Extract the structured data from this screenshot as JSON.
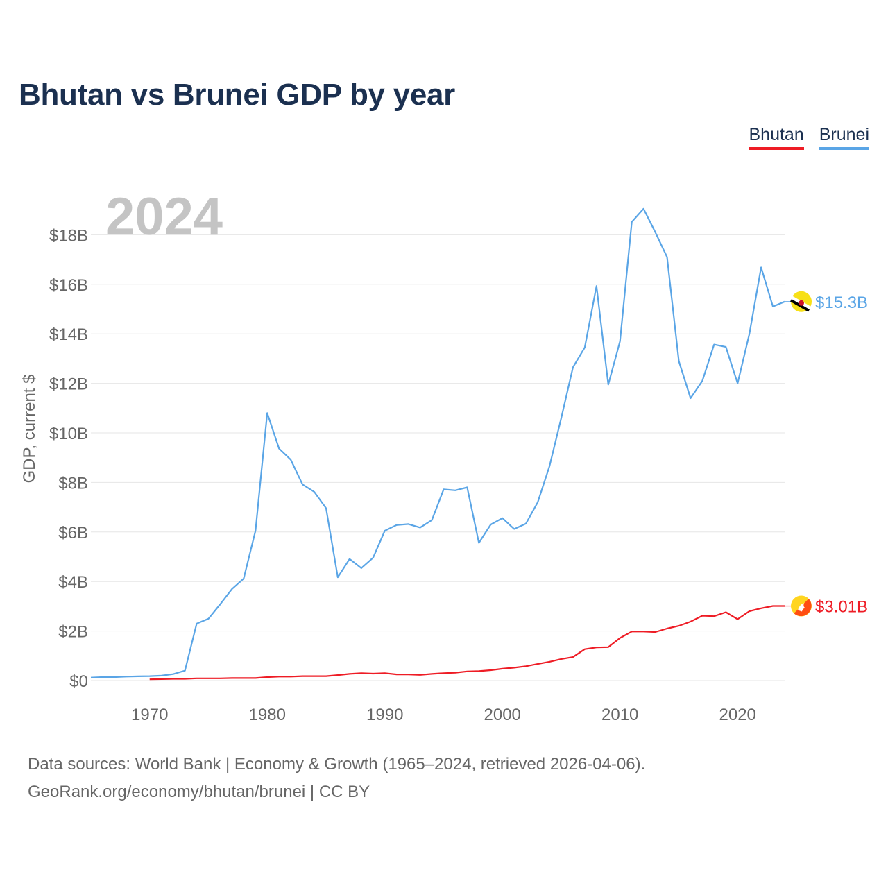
{
  "chart_data": {
    "type": "line",
    "title": "Bhutan vs Brunei GDP by year",
    "year_label": "2024",
    "ylabel": "GDP, current $",
    "xlabel": "",
    "xlim": [
      1965,
      2024
    ],
    "ylim": [
      0,
      19.3
    ],
    "x_ticks": [
      1970,
      1980,
      1990,
      2000,
      2010,
      2020
    ],
    "y_ticks": [
      {
        "value": 0,
        "label": "$0"
      },
      {
        "value": 2,
        "label": "$2B"
      },
      {
        "value": 4,
        "label": "$4B"
      },
      {
        "value": 6,
        "label": "$6B"
      },
      {
        "value": 8,
        "label": "$8B"
      },
      {
        "value": 10,
        "label": "$10B"
      },
      {
        "value": 12,
        "label": "$12B"
      },
      {
        "value": 14,
        "label": "$14B"
      },
      {
        "value": 16,
        "label": "$16B"
      },
      {
        "value": 18,
        "label": "$18B"
      }
    ],
    "units": "billions of current US$",
    "series": [
      {
        "name": "Brunei",
        "color": "#5aa5e6",
        "end_label": "$15.3B",
        "icon": "brunei-flag-icon",
        "x": [
          1965,
          1966,
          1967,
          1968,
          1969,
          1970,
          1971,
          1972,
          1973,
          1974,
          1975,
          1976,
          1977,
          1978,
          1979,
          1980,
          1981,
          1982,
          1983,
          1984,
          1985,
          1986,
          1987,
          1988,
          1989,
          1990,
          1991,
          1992,
          1993,
          1994,
          1995,
          1996,
          1997,
          1998,
          1999,
          2000,
          2001,
          2002,
          2003,
          2004,
          2005,
          2006,
          2007,
          2008,
          2009,
          2010,
          2011,
          2012,
          2013,
          2014,
          2015,
          2016,
          2017,
          2018,
          2019,
          2020,
          2021,
          2022,
          2023,
          2024
        ],
        "values": [
          0.12,
          0.14,
          0.14,
          0.16,
          0.17,
          0.18,
          0.2,
          0.26,
          0.4,
          2.3,
          2.5,
          3.08,
          3.7,
          4.12,
          6.05,
          10.8,
          9.37,
          8.92,
          7.92,
          7.62,
          6.96,
          4.17,
          4.91,
          4.54,
          4.96,
          6.05,
          6.28,
          6.32,
          6.18,
          6.48,
          7.72,
          7.68,
          7.8,
          5.56,
          6.3,
          6.56,
          6.12,
          6.34,
          7.2,
          8.65,
          10.6,
          12.65,
          13.45,
          15.93,
          11.95,
          13.7,
          18.52,
          19.05,
          18.1,
          17.1,
          12.9,
          11.4,
          12.1,
          13.57,
          13.47,
          12.0,
          14.0,
          16.68,
          15.1,
          15.3
        ]
      },
      {
        "name": "Bhutan",
        "color": "#ee1c25",
        "end_label": "$3.01B",
        "icon": "bhutan-flag-icon",
        "x": [
          1970,
          1971,
          1972,
          1973,
          1974,
          1975,
          1976,
          1977,
          1978,
          1979,
          1980,
          1981,
          1982,
          1983,
          1984,
          1985,
          1986,
          1987,
          1988,
          1989,
          1990,
          1991,
          1992,
          1993,
          1994,
          1995,
          1996,
          1997,
          1998,
          1999,
          2000,
          2001,
          2002,
          2003,
          2004,
          2005,
          2006,
          2007,
          2008,
          2009,
          2010,
          2011,
          2012,
          2013,
          2014,
          2015,
          2016,
          2017,
          2018,
          2019,
          2020,
          2021,
          2022,
          2023,
          2024
        ],
        "values": [
          0.05,
          0.06,
          0.07,
          0.07,
          0.09,
          0.09,
          0.09,
          0.1,
          0.1,
          0.1,
          0.14,
          0.16,
          0.16,
          0.18,
          0.18,
          0.18,
          0.22,
          0.27,
          0.3,
          0.28,
          0.3,
          0.25,
          0.25,
          0.23,
          0.27,
          0.3,
          0.32,
          0.37,
          0.38,
          0.42,
          0.48,
          0.52,
          0.58,
          0.67,
          0.76,
          0.87,
          0.95,
          1.27,
          1.34,
          1.35,
          1.72,
          1.98,
          1.98,
          1.96,
          2.1,
          2.21,
          2.38,
          2.62,
          2.6,
          2.76,
          2.48,
          2.8,
          2.92,
          3.01,
          3.01
        ]
      }
    ]
  },
  "legend": [
    {
      "name": "Bhutan",
      "color": "#ee1c25"
    },
    {
      "name": "Brunei",
      "color": "#5aa5e6"
    }
  ],
  "footer": {
    "line1": "Data sources: World Bank | Economy & Growth (1965–2024, retrieved 2026-04-06).",
    "line2": "GeoRank.org/economy/bhutan/brunei | CC BY"
  }
}
